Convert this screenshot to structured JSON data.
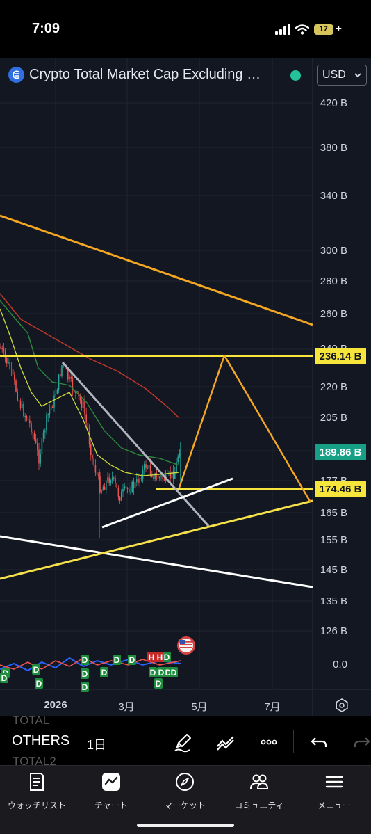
{
  "status": {
    "time": "7:09",
    "battery": "17"
  },
  "header": {
    "symbol_title": "Crypto Total Market Cap Excluding …",
    "currency": "USD",
    "more_glyph": "⋯"
  },
  "chart_data": {
    "type": "candlestick",
    "y_axis_labels": [
      "420 B",
      "380 B",
      "340 B",
      "300 B",
      "280 B",
      "260 B",
      "240 B",
      "220 B",
      "205 B",
      "177 B",
      "165 B",
      "155 B",
      "145 B",
      "135 B",
      "126 B",
      "0.0"
    ],
    "x_axis_labels": [
      "2026",
      "3月",
      "5月",
      "7月"
    ],
    "price_tags": [
      "236.14 B",
      "189.86 B",
      "174.46 B"
    ],
    "horizontal_levels": [
      236.14,
      174.46
    ],
    "last_price": 189.86,
    "scale": "log",
    "marker_letters": [
      "D",
      "D",
      "D",
      "D",
      "D",
      "D",
      "D",
      "D",
      "D",
      "H",
      "H",
      "D",
      "D",
      "D",
      "D",
      "D",
      "D",
      "D"
    ]
  },
  "toolbar": {
    "prev_symbol": "TOTAL",
    "symbol": "OTHERS",
    "next_symbol": "TOTAL2",
    "interval": "1日"
  },
  "nav": {
    "items": [
      {
        "label": "ウォッチリスト",
        "icon": "watchlist-icon"
      },
      {
        "label": "チャート",
        "icon": "chart-icon"
      },
      {
        "label": "マーケット",
        "icon": "compass-icon"
      },
      {
        "label": "コミュニティ",
        "icon": "community-icon"
      },
      {
        "label": "メニュー",
        "icon": "menu-icon"
      }
    ]
  },
  "colors": {
    "background": "#131722",
    "up": "#26a69a",
    "down": "#ef5350",
    "orange": "#f5a623",
    "yellow": "#f7e53b",
    "tag_green": "#16a085"
  }
}
